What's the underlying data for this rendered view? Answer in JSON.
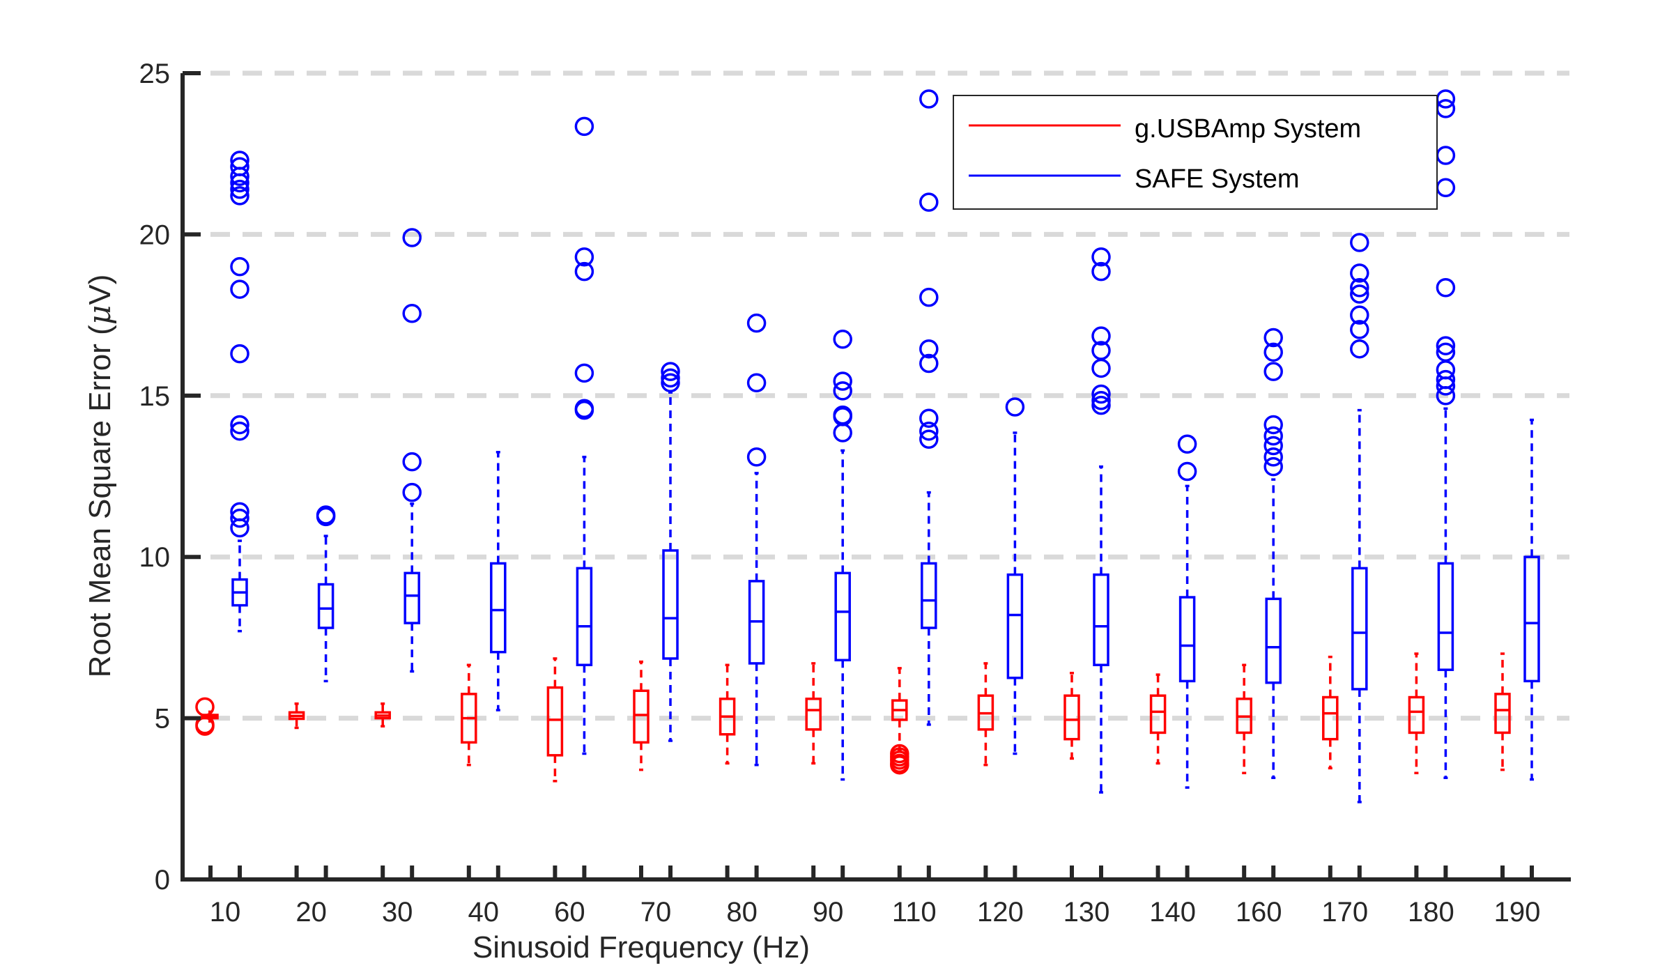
{
  "chart_data": {
    "type": "box",
    "title": "",
    "xlabel": "Sinusoid Frequency (Hz)",
    "ylabel_main": "Root Mean Square Error (",
    "ylabel_mu": "μ",
    "ylabel_tail": "V)",
    "ylim": [
      0,
      25
    ],
    "yticks": [
      0,
      5,
      10,
      15,
      20,
      25
    ],
    "grid": "horizontal dashed",
    "legend_position": "top-right",
    "categories": [
      "10",
      "20",
      "30",
      "40",
      "60",
      "70",
      "80",
      "90",
      "110",
      "120",
      "130",
      "140",
      "160",
      "170",
      "180",
      "190"
    ],
    "series": [
      {
        "name": "g.USBAmp System",
        "color": "#ff0000",
        "boxes": [
          {
            "whisker_low": 4.9,
            "q1": 5.0,
            "median": 5.05,
            "q3": 5.1,
            "whisker_high": 5.2,
            "outliers": [
              5.35,
              4.8,
              4.75
            ]
          },
          {
            "whisker_low": 4.7,
            "q1": 4.98,
            "median": 5.07,
            "q3": 5.18,
            "whisker_high": 5.45,
            "outliers": []
          },
          {
            "whisker_low": 4.75,
            "q1": 5.0,
            "median": 5.08,
            "q3": 5.18,
            "whisker_high": 5.45,
            "outliers": []
          },
          {
            "whisker_low": 3.55,
            "q1": 4.25,
            "median": 5.0,
            "q3": 5.75,
            "whisker_high": 6.65,
            "outliers": []
          },
          {
            "whisker_low": 3.05,
            "q1": 3.85,
            "median": 4.95,
            "q3": 5.95,
            "whisker_high": 6.85,
            "outliers": []
          },
          {
            "whisker_low": 3.4,
            "q1": 4.25,
            "median": 5.1,
            "q3": 5.85,
            "whisker_high": 6.75,
            "outliers": []
          },
          {
            "whisker_low": 3.6,
            "q1": 4.5,
            "median": 5.05,
            "q3": 5.6,
            "whisker_high": 6.65,
            "outliers": []
          },
          {
            "whisker_low": 3.6,
            "q1": 4.65,
            "median": 5.25,
            "q3": 5.6,
            "whisker_high": 6.7,
            "outliers": []
          },
          {
            "whisker_low": 4.0,
            "q1": 4.95,
            "median": 5.25,
            "q3": 5.55,
            "whisker_high": 6.55,
            "outliers": [
              3.9,
              3.8,
              3.7,
              3.6,
              3.55
            ]
          },
          {
            "whisker_low": 3.55,
            "q1": 4.65,
            "median": 5.15,
            "q3": 5.7,
            "whisker_high": 6.7,
            "outliers": []
          },
          {
            "whisker_low": 3.75,
            "q1": 4.35,
            "median": 4.95,
            "q3": 5.7,
            "whisker_high": 6.4,
            "outliers": []
          },
          {
            "whisker_low": 3.6,
            "q1": 4.55,
            "median": 5.2,
            "q3": 5.7,
            "whisker_high": 6.35,
            "outliers": []
          },
          {
            "whisker_low": 3.3,
            "q1": 4.55,
            "median": 5.05,
            "q3": 5.6,
            "whisker_high": 6.65,
            "outliers": []
          },
          {
            "whisker_low": 3.45,
            "q1": 4.35,
            "median": 5.15,
            "q3": 5.65,
            "whisker_high": 6.9,
            "outliers": []
          },
          {
            "whisker_low": 3.3,
            "q1": 4.55,
            "median": 5.2,
            "q3": 5.65,
            "whisker_high": 7.0,
            "outliers": []
          },
          {
            "whisker_low": 3.4,
            "q1": 4.55,
            "median": 5.25,
            "q3": 5.75,
            "whisker_high": 7.0,
            "outliers": []
          }
        ]
      },
      {
        "name": "SAFE System",
        "color": "#0000ff",
        "boxes": [
          {
            "whisker_low": 7.7,
            "q1": 8.5,
            "median": 8.9,
            "q3": 9.3,
            "whisker_high": 10.5,
            "outliers": [
              10.9,
              11.2,
              11.4,
              13.9,
              14.1,
              16.3,
              18.3,
              19.0,
              21.2,
              21.4,
              21.6,
              21.8,
              22.1,
              22.3
            ]
          },
          {
            "whisker_low": 6.15,
            "q1": 7.8,
            "median": 8.4,
            "q3": 9.15,
            "whisker_high": 10.65,
            "outliers": [
              11.25,
              11.3
            ]
          },
          {
            "whisker_low": 6.45,
            "q1": 7.95,
            "median": 8.8,
            "q3": 9.5,
            "whisker_high": 11.65,
            "outliers": [
              12.0,
              12.95,
              17.55,
              19.9
            ]
          },
          {
            "whisker_low": 5.25,
            "q1": 7.05,
            "median": 8.35,
            "q3": 9.8,
            "whisker_high": 13.25,
            "outliers": []
          },
          {
            "whisker_low": 3.9,
            "q1": 6.65,
            "median": 7.85,
            "q3": 9.65,
            "whisker_high": 13.1,
            "outliers": [
              14.55,
              14.6,
              15.7,
              18.85,
              19.3,
              23.35
            ]
          },
          {
            "whisker_low": 4.3,
            "q1": 6.85,
            "median": 8.1,
            "q3": 10.2,
            "whisker_high": 15.1,
            "outliers": [
              15.4,
              15.55,
              15.75
            ]
          },
          {
            "whisker_low": 3.55,
            "q1": 6.7,
            "median": 8.0,
            "q3": 9.25,
            "whisker_high": 12.6,
            "outliers": [
              13.1,
              15.4,
              17.25
            ]
          },
          {
            "whisker_low": 3.1,
            "q1": 6.8,
            "median": 8.3,
            "q3": 9.5,
            "whisker_high": 13.3,
            "outliers": [
              13.85,
              14.35,
              14.4,
              15.15,
              15.45,
              16.75
            ]
          },
          {
            "whisker_low": 4.8,
            "q1": 7.8,
            "median": 8.65,
            "q3": 9.8,
            "whisker_high": 12.0,
            "outliers": [
              13.65,
              13.9,
              14.3,
              16.0,
              16.45,
              18.05,
              21.0,
              24.2
            ]
          },
          {
            "whisker_low": 3.9,
            "q1": 6.25,
            "median": 8.2,
            "q3": 9.45,
            "whisker_high": 13.85,
            "outliers": [
              14.65
            ]
          },
          {
            "whisker_low": 2.7,
            "q1": 6.65,
            "median": 7.85,
            "q3": 9.45,
            "whisker_high": 12.8,
            "outliers": [
              14.7,
              14.85,
              15.05,
              15.85,
              16.4,
              16.85,
              18.85,
              19.3
            ]
          },
          {
            "whisker_low": 2.85,
            "q1": 6.15,
            "median": 7.25,
            "q3": 8.75,
            "whisker_high": 12.2,
            "outliers": [
              12.65,
              13.5
            ]
          },
          {
            "whisker_low": 3.15,
            "q1": 6.1,
            "median": 7.2,
            "q3": 8.7,
            "whisker_high": 12.4,
            "outliers": [
              12.8,
              13.1,
              13.45,
              13.75,
              14.1,
              15.75,
              16.35,
              16.8
            ]
          },
          {
            "whisker_low": 2.4,
            "q1": 5.9,
            "median": 7.65,
            "q3": 9.65,
            "whisker_high": 14.55,
            "outliers": [
              16.45,
              17.05,
              17.5,
              18.15,
              18.35,
              18.8,
              19.75
            ]
          },
          {
            "whisker_low": 3.15,
            "q1": 6.5,
            "median": 7.65,
            "q3": 9.8,
            "whisker_high": 14.6,
            "outliers": [
              15.0,
              15.3,
              15.5,
              15.8,
              16.35,
              16.55,
              18.35,
              21.45,
              22.45,
              23.9,
              24.2
            ]
          },
          {
            "whisker_low": 3.1,
            "q1": 6.15,
            "median": 7.95,
            "q3": 10.0,
            "whisker_high": 14.25,
            "outliers": []
          }
        ]
      }
    ]
  }
}
